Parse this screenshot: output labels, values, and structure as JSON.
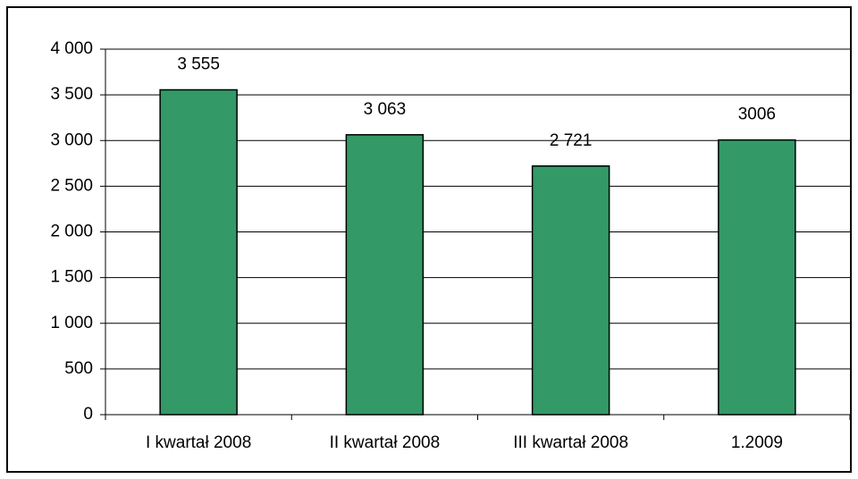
{
  "chart_data": {
    "type": "bar",
    "categories": [
      "I kwartał 2008",
      "II kwartał 2008",
      "III kwartał 2008",
      "1.2009"
    ],
    "values": [
      3555,
      3063,
      2721,
      3006
    ],
    "value_labels": [
      "3 555",
      "3 063",
      "2 721",
      "3006"
    ],
    "color": "#339966",
    "ylim": [
      0,
      4000
    ],
    "yticks": [
      0,
      500,
      {
        "value": 1000,
        "label": "1 000"
      },
      {
        "value": 1500,
        "label": "1 500"
      },
      {
        "value": 2000,
        "label": "2 000"
      },
      {
        "value": 2500,
        "label": "2 500"
      },
      {
        "value": 3000,
        "label": "3 000"
      },
      {
        "value": 3500,
        "label": "3 500"
      },
      {
        "value": 4000,
        "label": "4 000"
      }
    ],
    "grid": true
  }
}
